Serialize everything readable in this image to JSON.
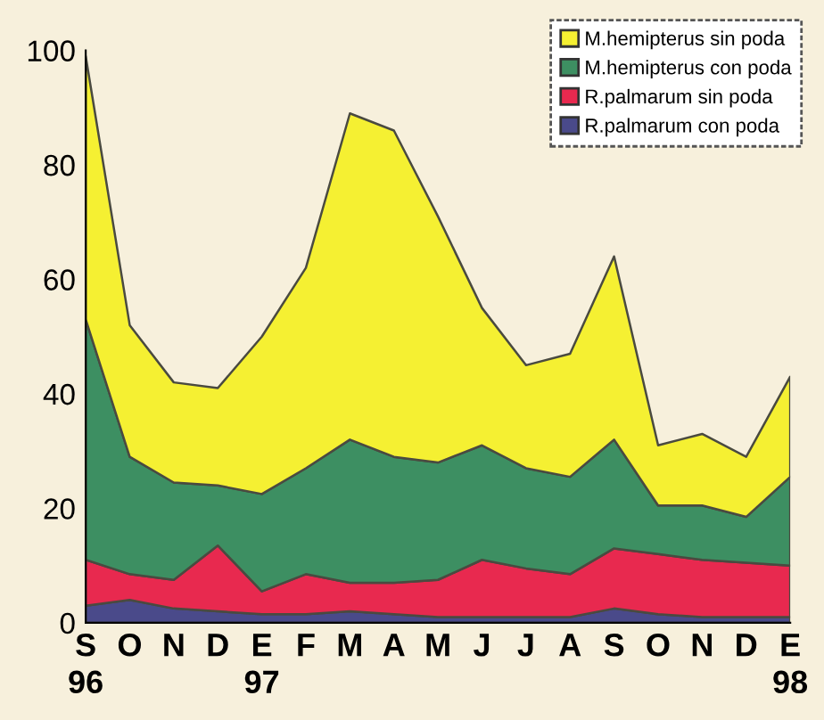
{
  "chart_data": {
    "type": "area",
    "stacked": true,
    "categories": [
      "S\n96",
      "O",
      "N",
      "D",
      "E\n97",
      "F",
      "M",
      "A",
      "M",
      "J",
      "J",
      "A",
      "S",
      "O",
      "N",
      "D",
      "E\n98"
    ],
    "series": [
      {
        "name": "R.palmarum con poda",
        "color": "#4a4a8a",
        "values": [
          3,
          4,
          2.5,
          2,
          1.5,
          1.5,
          2,
          1.5,
          1,
          1,
          1,
          1,
          2.5,
          1.5,
          1,
          1,
          1
        ]
      },
      {
        "name": "R.palmarum sin poda",
        "color": "#e8294f",
        "values": [
          8,
          4.5,
          5,
          11.5,
          4,
          7,
          5,
          5.5,
          6.5,
          10,
          8.5,
          7.5,
          10.5,
          10.5,
          10,
          9.5,
          9
        ]
      },
      {
        "name": "M.hemipterus con poda",
        "color": "#3d8f62",
        "values": [
          42,
          20.5,
          17,
          10.5,
          17,
          18.5,
          25,
          22,
          20.5,
          20,
          17.5,
          17,
          19,
          8.5,
          9.5,
          8,
          15.5
        ]
      },
      {
        "name": "M.hemipterus sin poda",
        "color": "#f5f032",
        "values": [
          46,
          23,
          17.5,
          17,
          27.5,
          35,
          57,
          57,
          43,
          24,
          18,
          21.5,
          32,
          10.5,
          12.5,
          10.5,
          17.5
        ]
      }
    ],
    "ylim": [
      0,
      100
    ],
    "yticks": [
      0,
      20,
      40,
      60,
      80,
      100
    ],
    "grid": false,
    "legend": "top right"
  }
}
